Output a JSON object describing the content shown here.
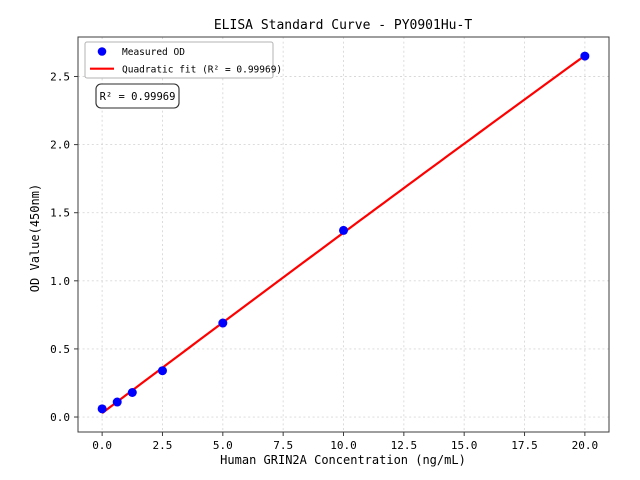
{
  "chart_data": {
    "type": "scatter",
    "title": "ELISA Standard Curve - PY0901Hu-T",
    "xlabel": "Human GRIN2A Concentration (ng/mL)",
    "ylabel": "OD Value(450nm)",
    "series": [
      {
        "name": "Measured OD",
        "x": [
          0,
          0.625,
          1.25,
          2.5,
          5,
          10,
          20
        ],
        "y": [
          0.06,
          0.11,
          0.18,
          0.34,
          0.69,
          1.37,
          2.65
        ]
      }
    ],
    "fit": {
      "type": "quadratic",
      "r_squared": 0.99969,
      "x_start": 0,
      "x_end": 20
    },
    "xlim": [
      -1,
      21
    ],
    "ylim": [
      -0.11,
      2.79
    ],
    "xticks": {
      "values": [
        0,
        2.5,
        5,
        7.5,
        10,
        12.5,
        15,
        17.5,
        20
      ],
      "labels": [
        "0.0",
        "2.5",
        "5.0",
        "7.5",
        "10.0",
        "12.5",
        "15.0",
        "17.5",
        "20.0"
      ]
    },
    "yticks": {
      "values": [
        0,
        0.5,
        1,
        1.5,
        2,
        2.5
      ],
      "labels": [
        "0.0",
        "0.5",
        "1.0",
        "1.5",
        "2.0",
        "2.5"
      ]
    },
    "grid": true,
    "legend": {
      "position": "upper left",
      "entries": [
        {
          "marker": "point",
          "label": "Measured OD"
        },
        {
          "marker": "line",
          "label": "Quadratic fit (R² = 0.99969)"
        }
      ]
    },
    "annotation": {
      "text": "R² = 0.99969"
    },
    "colors": {
      "points": "#0000ff",
      "fit_line": "#ff0000",
      "grid": "#d8d8d8",
      "spine": "#3c3c3c",
      "text": "#000000",
      "legend_border": "#b3b3b3"
    }
  }
}
